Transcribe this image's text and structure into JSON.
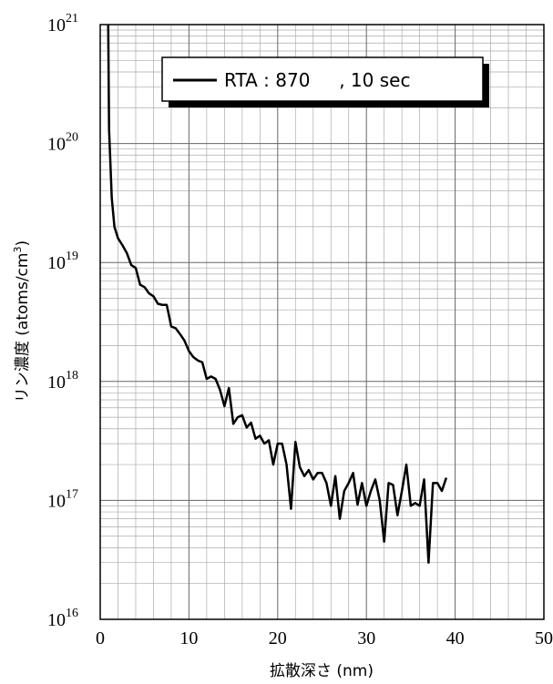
{
  "chart_data": {
    "type": "line",
    "log_y": true,
    "grid": true,
    "xlabel": "拡散深さ (nm)",
    "ylabel": "リン濃度 (atoms/cm",
    "ylabel_sup": "3",
    "ylabel_end": ")",
    "legend_label": "RTA : 870     , 10 sec",
    "legend": "upper right",
    "xlim": [
      0,
      50
    ],
    "xticks": [
      0,
      10,
      20,
      30,
      40,
      50
    ],
    "xminorticks": [
      2,
      4,
      6,
      8,
      12,
      14,
      16,
      18,
      22,
      24,
      26,
      28,
      32,
      34,
      36,
      38,
      42,
      44,
      46,
      48
    ],
    "ylim": [
      1e+16,
      1e+21
    ],
    "yticks": [
      {
        "value": 1e+16,
        "label": "10",
        "sup": "16"
      },
      {
        "value": 1e+17,
        "label": "10",
        "sup": "17"
      },
      {
        "value": 1e+18,
        "label": "10",
        "sup": "18"
      },
      {
        "value": 1e+19,
        "label": "10",
        "sup": "19"
      },
      {
        "value": 1e+20,
        "label": "10",
        "sup": "20"
      },
      {
        "value": 1e+21,
        "label": "10",
        "sup": "21"
      }
    ],
    "yminorticks": [
      2e+16,
      3e+16,
      4e+16,
      5e+16,
      6e+16,
      7e+16,
      8e+16,
      9e+16,
      2e+17,
      3e+17,
      4e+17,
      5e+17,
      6e+17,
      7e+17,
      8e+17,
      9e+17,
      2e+18,
      3e+18,
      4e+18,
      5e+18,
      6e+18,
      7e+18,
      8e+18,
      9e+18,
      2e+19,
      3e+19,
      4e+19,
      5e+19,
      6e+19,
      7e+19,
      8e+19,
      9e+19,
      2e+20,
      3e+20,
      4e+20,
      5e+20,
      6e+20,
      7e+20,
      8e+20,
      9e+20
    ],
    "series": [
      {
        "name": "RTA : 870     , 10 sec",
        "color": "#000000",
        "x": [
          0.9,
          1.0,
          1.3,
          1.6,
          2.0,
          2.5,
          3.0,
          3.5,
          4.0,
          4.5,
          5.0,
          5.5,
          6.0,
          6.5,
          7.0,
          7.5,
          8.0,
          8.5,
          9.0,
          9.5,
          10.0,
          10.5,
          11.0,
          11.5,
          12.0,
          12.5,
          13.0,
          13.5,
          14.0,
          14.5,
          15.0,
          15.5,
          16.0,
          16.5,
          17.0,
          17.5,
          18.0,
          18.5,
          19.0,
          19.5,
          20.0,
          20.5,
          21.0,
          21.5,
          22.0,
          22.5,
          23.0,
          23.5,
          24.0,
          24.5,
          25.0,
          25.5,
          26.0,
          26.5,
          27.0,
          27.5,
          28.0,
          28.5,
          29.0,
          29.5,
          30.0,
          30.5,
          31.0,
          31.5,
          32.0,
          32.5,
          33.0,
          33.5,
          34.0,
          34.5,
          35.0,
          35.5,
          36.0,
          36.5,
          37.0,
          37.5,
          38.0,
          38.5,
          39.0
        ],
        "values": [
          1e+21,
          1.3e+20,
          3.5e+19,
          2e+19,
          1.6e+19,
          1.4e+19,
          1.2e+19,
          9.5e+18,
          9e+18,
          6.5e+18,
          6.2e+18,
          5.5e+18,
          5.2e+18,
          4.5e+18,
          4.4e+18,
          4.4e+18,
          2.9e+18,
          2.8e+18,
          2.5e+18,
          2.2e+18,
          1.8e+18,
          1.6e+18,
          1.5e+18,
          1.45e+18,
          1.05e+18,
          1.1e+18,
          1.05e+18,
          8.5e+17,
          6.2e+17,
          8.8e+17,
          4.4e+17,
          5e+17,
          5.2e+17,
          4.1e+17,
          4.5e+17,
          3.3e+17,
          3.5e+17,
          3e+17,
          3.2e+17,
          2e+17,
          3e+17,
          3e+17,
          2e+17,
          8.5e+16,
          3.1e+17,
          1.9e+17,
          1.6e+17,
          1.8e+17,
          1.5e+17,
          1.7e+17,
          1.7e+17,
          1.4e+17,
          9e+16,
          1.6e+17,
          7e+16,
          1.2e+17,
          1.4e+17,
          1.7e+17,
          9.2e+16,
          1.4e+17,
          9e+16,
          1.2e+17,
          1.5e+17,
          1e+17,
          4.5e+16,
          1.4e+17,
          1.35e+17,
          7.5e+16,
          1.2e+17,
          2e+17,
          9e+16,
          9.5e+16,
          9e+16,
          1.5e+17,
          3e+16,
          1.4e+17,
          1.4e+17,
          1.2e+17,
          1.55e+17
        ]
      }
    ]
  }
}
